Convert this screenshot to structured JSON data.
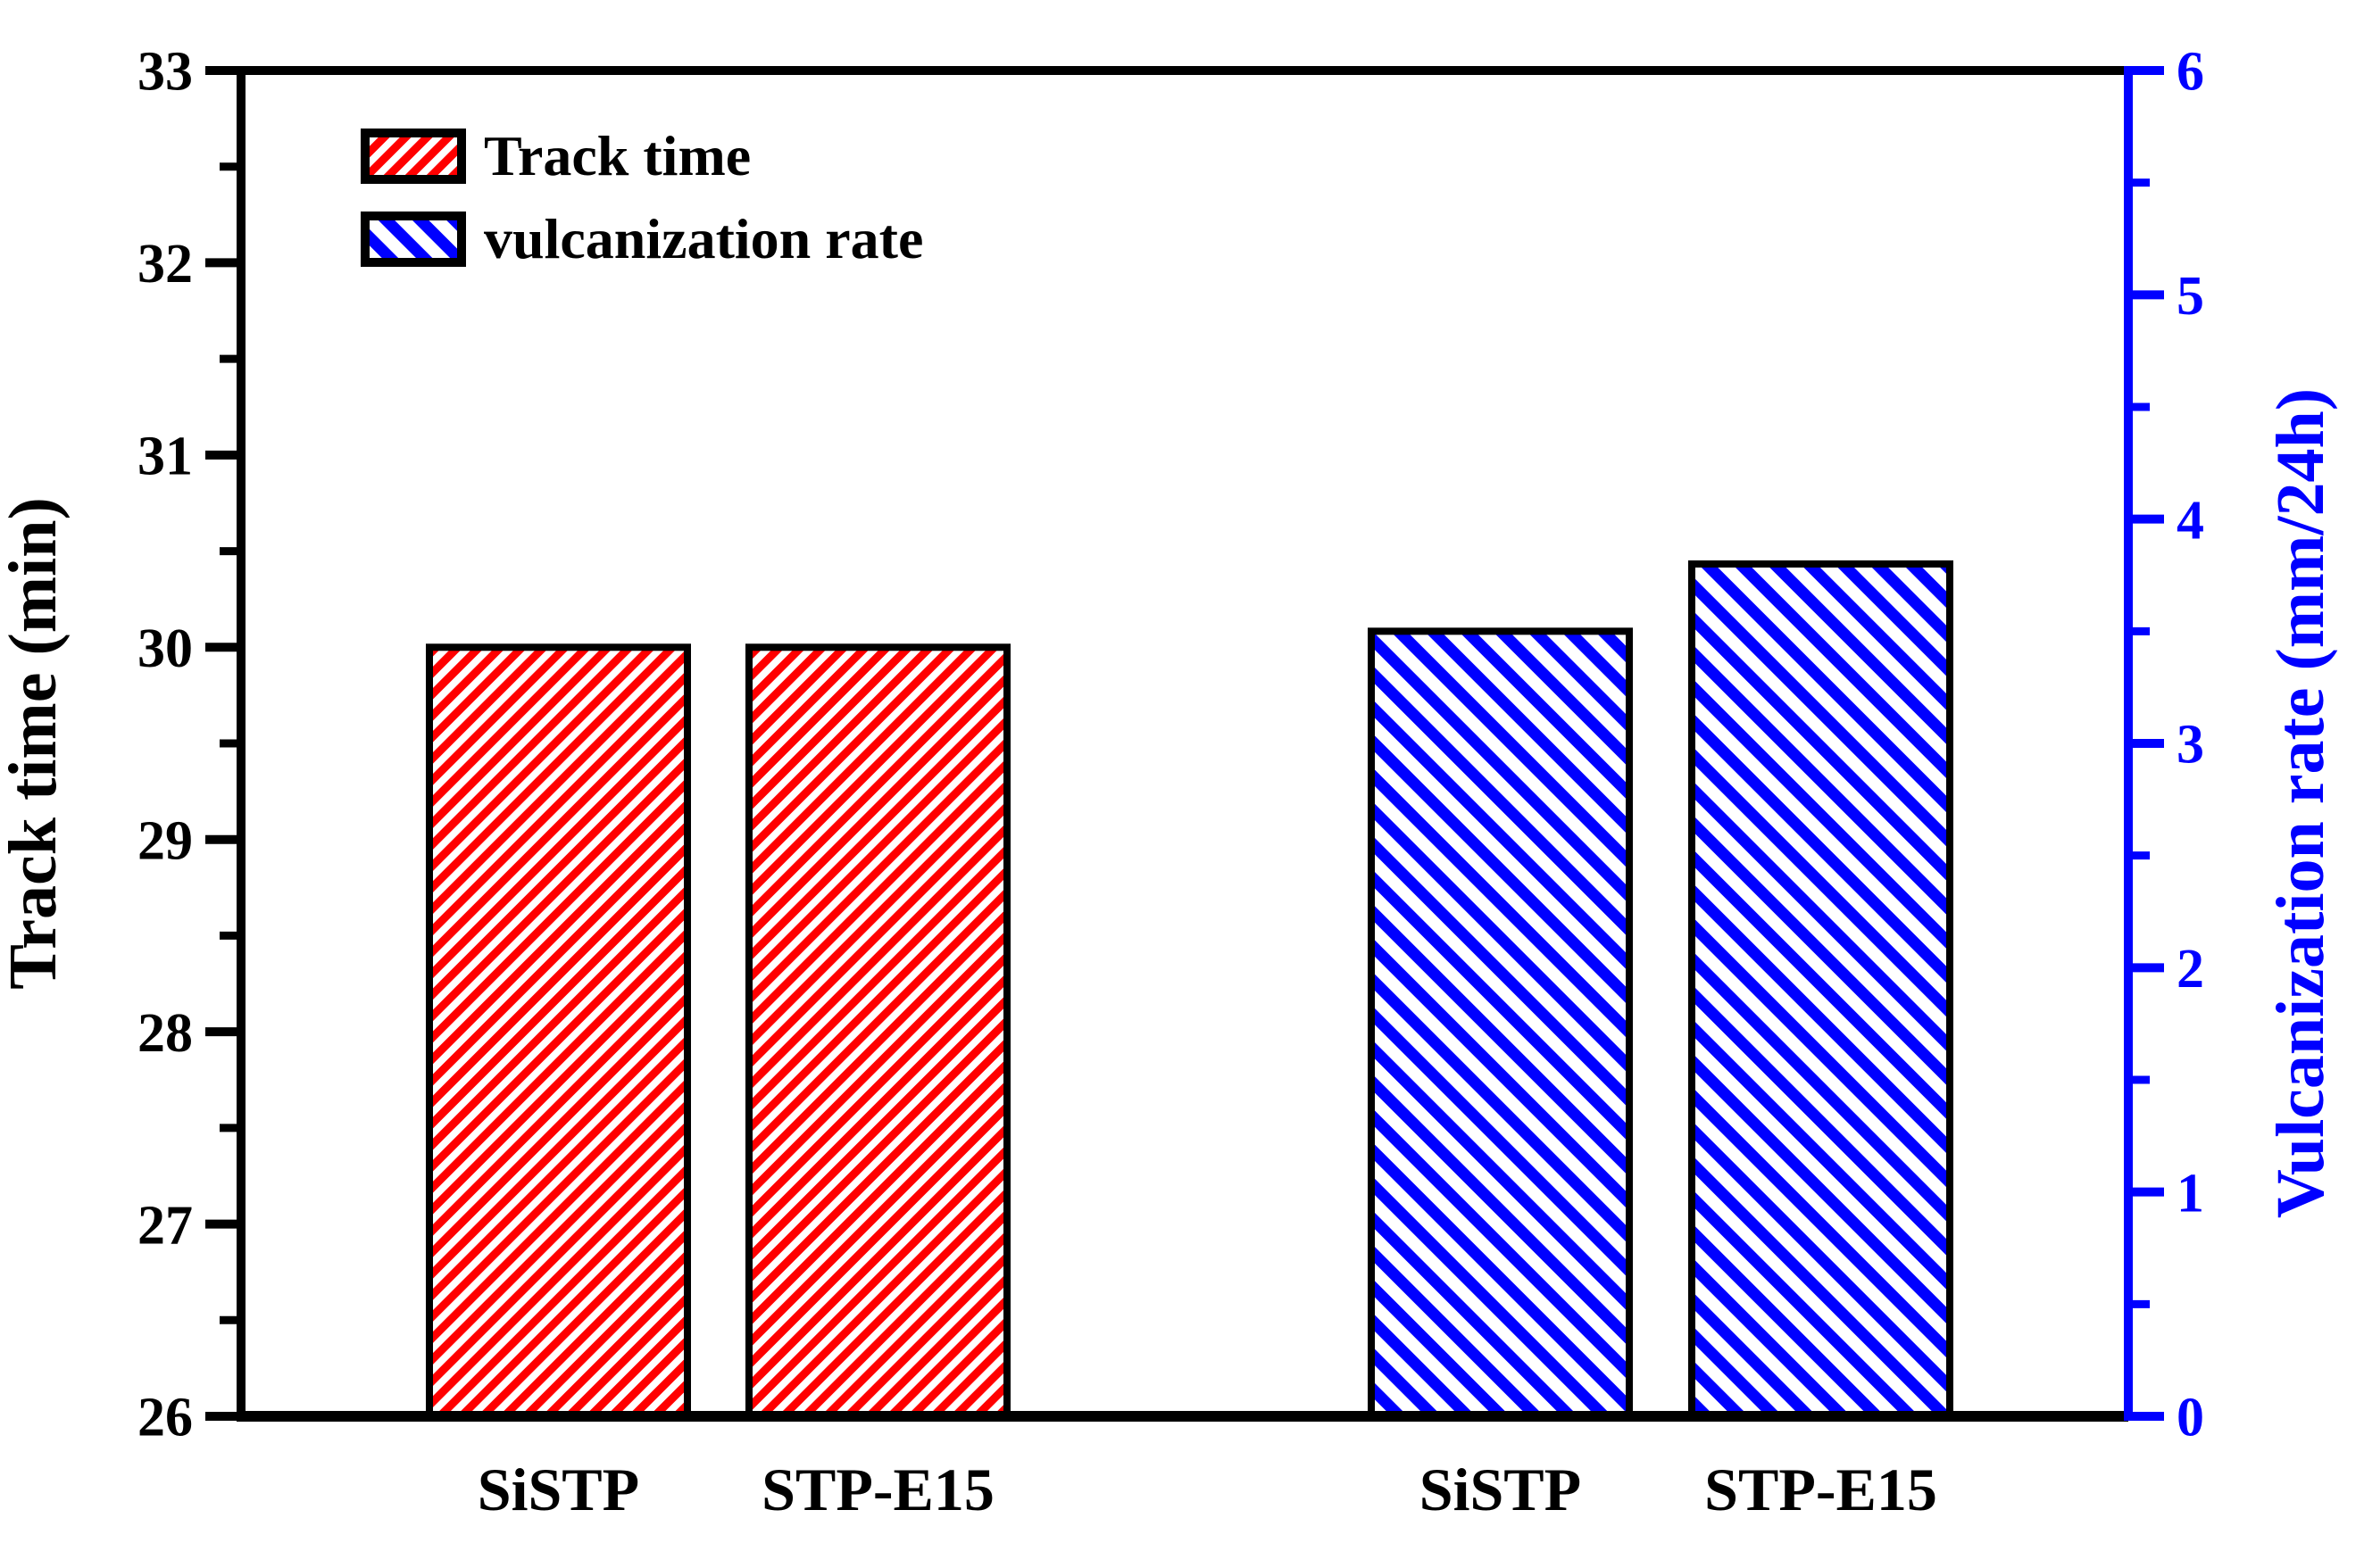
{
  "chart_data": {
    "type": "bar",
    "title": "",
    "grid": false,
    "background_color": "#ffffff",
    "frame_color": "#000000",
    "groups": [
      {
        "name": "Track time",
        "axis": "left",
        "color": "#ff0000",
        "hatch": "/",
        "categories": [
          "SiSTP",
          "STP-E15"
        ],
        "values": [
          30.0,
          30.0
        ]
      },
      {
        "name": "vulcanization rate",
        "axis": "right",
        "color": "#0000ff",
        "hatch": "\\",
        "categories": [
          "SiSTP",
          "STP-E15"
        ],
        "values": [
          3.5,
          3.8
        ]
      }
    ],
    "x_axis": {
      "tick_labels": [
        "SiSTP",
        "STP-E15",
        "SiSTP",
        "STP-E15"
      ]
    },
    "left_axis": {
      "label": "Track time (min)",
      "min": 26,
      "max": 33,
      "major_ticks": [
        26,
        27,
        28,
        29,
        30,
        31,
        32,
        33
      ],
      "minor_ticks": [
        26.5,
        27.5,
        28.5,
        29.5,
        30.5,
        31.5,
        32.5
      ],
      "color": "#000000"
    },
    "right_axis": {
      "label": "Vulcanization rate (mm/24h)",
      "min": 0,
      "max": 6,
      "major_ticks": [
        0,
        1,
        2,
        3,
        4,
        5,
        6
      ],
      "minor_ticks": [
        0.5,
        1.5,
        2.5,
        3.5,
        4.5,
        5.5
      ],
      "color": "#0000ff"
    },
    "legend": {
      "position": "top-left",
      "items": [
        {
          "label": "Track time",
          "color": "#ff0000",
          "hatch": "/"
        },
        {
          "label": "vulcanization rate",
          "color": "#0000ff",
          "hatch": "\\"
        }
      ]
    }
  }
}
